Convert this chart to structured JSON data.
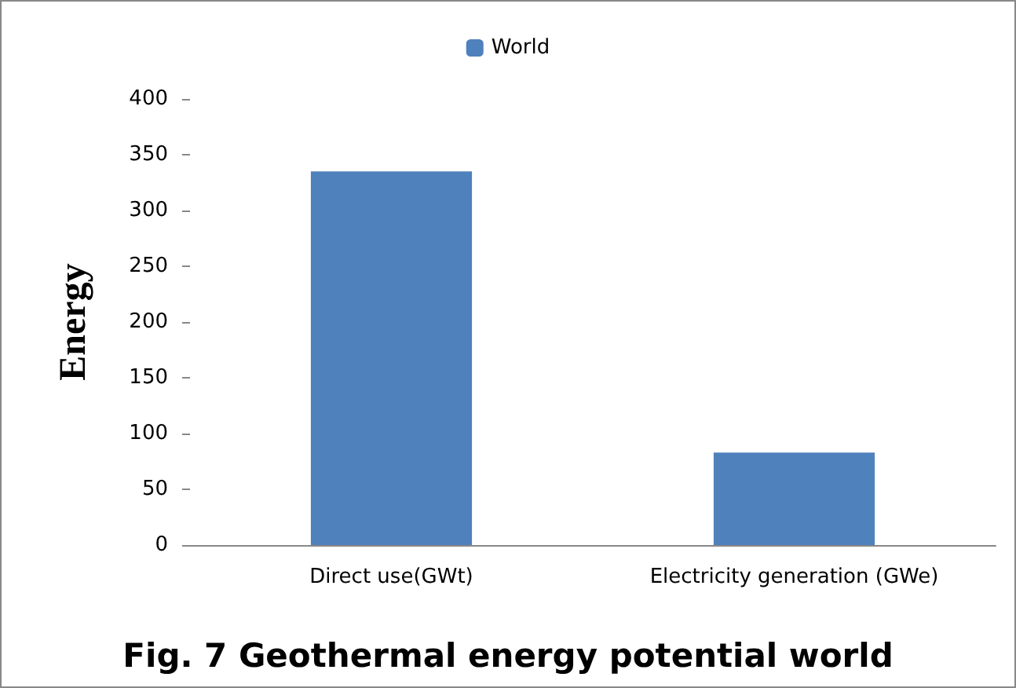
{
  "chart_data": {
    "type": "bar",
    "title": "Fig. 7 Geothermal energy potential world",
    "ylabel": "Energy",
    "categories": [
      "Direct use(GWt)",
      "Electricity generation (GWe)"
    ],
    "series": [
      {
        "name": "World",
        "color": "#4f81bd",
        "values": [
          335,
          83
        ]
      }
    ],
    "ylim": [
      0,
      400
    ],
    "yticks": [
      0,
      50,
      100,
      150,
      200,
      250,
      300,
      350,
      400
    ],
    "grid": false,
    "legend": "top"
  }
}
